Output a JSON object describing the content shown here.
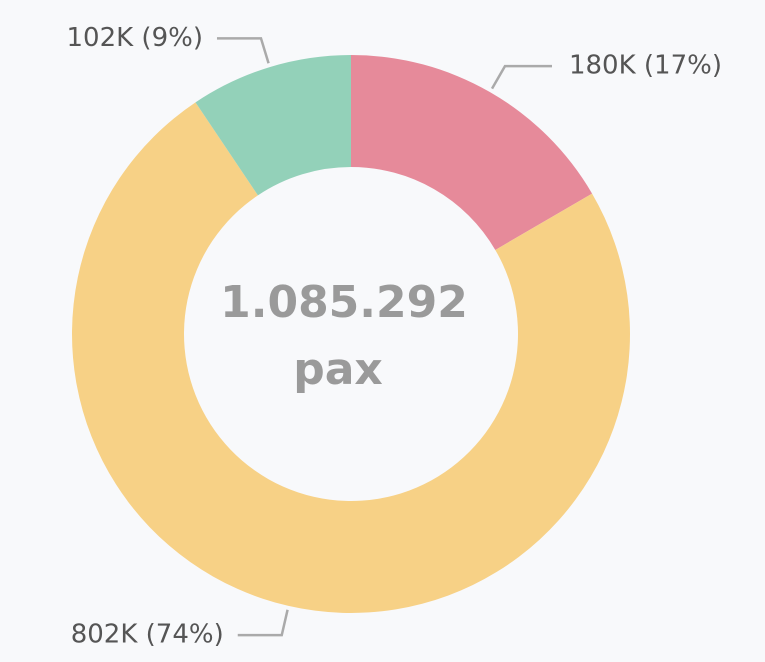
{
  "chart_data": {
    "type": "donut",
    "categories": [
      "180K (17%)",
      "802K (74%)",
      "102K (9%)"
    ],
    "values": [
      180000,
      802000,
      102000
    ],
    "value_labels": [
      "180K (17%)",
      "802K (74%)",
      "102K (9%)"
    ],
    "colors": [
      "#e68a9a",
      "#f7d186",
      "#93d1b9"
    ],
    "center_label": "1.085.292",
    "center_unit": "pax"
  }
}
